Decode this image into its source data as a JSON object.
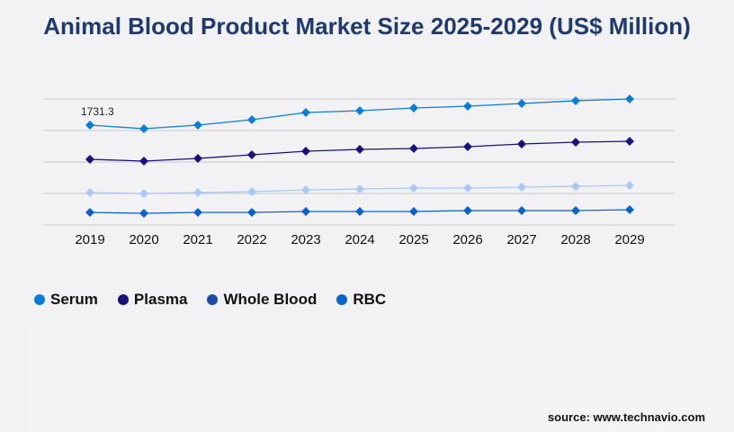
{
  "chart_data": {
    "type": "line",
    "title": "Animal Blood Product Market Size 2025-2029 (US$ Million)",
    "categories": [
      "2019",
      "2020",
      "2021",
      "2022",
      "2023",
      "2024",
      "2025",
      "2026",
      "2027",
      "2028",
      "2029"
    ],
    "ylim": [
      0,
      2184
    ],
    "grid": true,
    "legend_position": "bottom-left",
    "series": [
      {
        "name": "Serum",
        "color": "#0a7ed4",
        "line_color": "#0a7ed4",
        "values": [
          1731.3,
          1669,
          1731,
          1825,
          1950,
          1981,
          2028,
          2059,
          2106,
          2153,
          2184
        ]
      },
      {
        "name": "Plasma",
        "color": "#1a1278",
        "line_color": "#1a1278",
        "values": [
          1139,
          1108,
          1154,
          1217,
          1279,
          1310,
          1326,
          1357,
          1404,
          1435,
          1451
        ]
      },
      {
        "name": "Whole Blood",
        "color": "#1c4aa8",
        "line_color": "#a8c8f8",
        "values": [
          562,
          546,
          562,
          577,
          608,
          624,
          640,
          640,
          655,
          671,
          686
        ]
      },
      {
        "name": "RBC",
        "color": "#0a64c8",
        "line_color": "#0a64c8",
        "values": [
          218,
          203,
          218,
          218,
          234,
          234,
          234,
          250,
          250,
          250,
          265
        ]
      }
    ],
    "annotations": [
      {
        "label": "1731.3",
        "series": "Serum",
        "category": "2019"
      }
    ]
  },
  "source": "source: www.technavio.com"
}
